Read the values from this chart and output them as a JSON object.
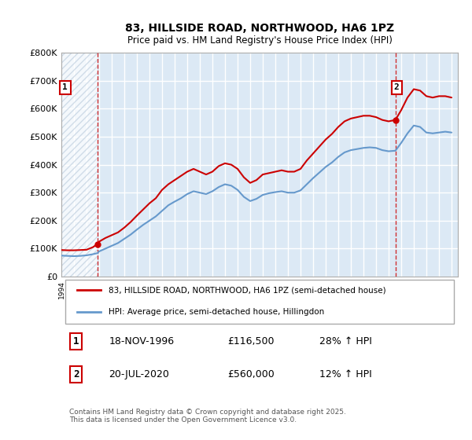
{
  "title": "83, HILLSIDE ROAD, NORTHWOOD, HA6 1PZ",
  "subtitle": "Price paid vs. HM Land Registry's House Price Index (HPI)",
  "background_color": "#ffffff",
  "plot_bg_color": "#dce9f5",
  "hatch_color": "#c0d0e0",
  "grid_color": "#ffffff",
  "ylim": [
    0,
    800000
  ],
  "yticks": [
    0,
    100000,
    200000,
    300000,
    400000,
    500000,
    600000,
    700000,
    800000
  ],
  "ytick_labels": [
    "£0",
    "£100K",
    "£200K",
    "£300K",
    "£400K",
    "£500K",
    "£600K",
    "£700K",
    "£800K"
  ],
  "xlim_start": 1994.0,
  "xlim_end": 2025.5,
  "hatch_end_year": 1996.88,
  "annotation1": {
    "number": "1",
    "year": 1996.88,
    "value": 116500,
    "date": "18-NOV-1996",
    "price": "£116,500",
    "hpi_change": "28% ↑ HPI"
  },
  "annotation2": {
    "number": "2",
    "year": 2020.54,
    "value": 560000,
    "date": "20-JUL-2020",
    "price": "£560,000",
    "hpi_change": "12% ↑ HPI"
  },
  "red_line_color": "#cc0000",
  "blue_line_color": "#6699cc",
  "legend1_label": "83, HILLSIDE ROAD, NORTHWOOD, HA6 1PZ (semi-detached house)",
  "legend2_label": "HPI: Average price, semi-detached house, Hillingdon",
  "footer": "Contains HM Land Registry data © Crown copyright and database right 2025.\nThis data is licensed under the Open Government Licence v3.0.",
  "red_data": {
    "years": [
      1994.0,
      1994.5,
      1995.0,
      1995.5,
      1996.0,
      1996.5,
      1996.88,
      1997.0,
      1997.5,
      1998.0,
      1998.5,
      1999.0,
      1999.5,
      2000.0,
      2000.5,
      2001.0,
      2001.5,
      2002.0,
      2002.5,
      2003.0,
      2003.5,
      2004.0,
      2004.5,
      2005.0,
      2005.5,
      2006.0,
      2006.5,
      2007.0,
      2007.5,
      2008.0,
      2008.5,
      2009.0,
      2009.5,
      2010.0,
      2010.5,
      2011.0,
      2011.5,
      2012.0,
      2012.5,
      2013.0,
      2013.5,
      2014.0,
      2014.5,
      2015.0,
      2015.5,
      2016.0,
      2016.5,
      2017.0,
      2017.5,
      2018.0,
      2018.5,
      2019.0,
      2019.5,
      2020.0,
      2020.54,
      2021.0,
      2021.5,
      2022.0,
      2022.5,
      2023.0,
      2023.5,
      2024.0,
      2024.5,
      2025.0
    ],
    "values": [
      95000,
      94000,
      94000,
      95000,
      96000,
      105000,
      116500,
      125000,
      138000,
      148000,
      158000,
      175000,
      195000,
      218000,
      240000,
      262000,
      280000,
      310000,
      330000,
      345000,
      360000,
      375000,
      385000,
      375000,
      365000,
      375000,
      395000,
      405000,
      400000,
      385000,
      355000,
      335000,
      345000,
      365000,
      370000,
      375000,
      380000,
      375000,
      375000,
      385000,
      415000,
      440000,
      465000,
      490000,
      510000,
      535000,
      555000,
      565000,
      570000,
      575000,
      575000,
      570000,
      560000,
      555000,
      560000,
      595000,
      640000,
      670000,
      665000,
      645000,
      640000,
      645000,
      645000,
      640000
    ]
  },
  "blue_data": {
    "years": [
      1994.0,
      1994.5,
      1995.0,
      1995.5,
      1996.0,
      1996.5,
      1996.88,
      1997.0,
      1997.5,
      1998.0,
      1998.5,
      1999.0,
      1999.5,
      2000.0,
      2000.5,
      2001.0,
      2001.5,
      2002.0,
      2002.5,
      2003.0,
      2003.5,
      2004.0,
      2004.5,
      2005.0,
      2005.5,
      2006.0,
      2006.5,
      2007.0,
      2007.5,
      2008.0,
      2008.5,
      2009.0,
      2009.5,
      2010.0,
      2010.5,
      2011.0,
      2011.5,
      2012.0,
      2012.5,
      2013.0,
      2013.5,
      2014.0,
      2014.5,
      2015.0,
      2015.5,
      2016.0,
      2016.5,
      2017.0,
      2017.5,
      2018.0,
      2018.5,
      2019.0,
      2019.5,
      2020.0,
      2020.54,
      2021.0,
      2021.5,
      2022.0,
      2022.5,
      2023.0,
      2023.5,
      2024.0,
      2024.5,
      2025.0
    ],
    "values": [
      75000,
      74000,
      73000,
      74000,
      76000,
      80000,
      84000,
      90000,
      100000,
      110000,
      120000,
      135000,
      150000,
      168000,
      185000,
      200000,
      215000,
      235000,
      255000,
      268000,
      280000,
      295000,
      305000,
      300000,
      295000,
      305000,
      320000,
      330000,
      325000,
      310000,
      285000,
      270000,
      278000,
      292000,
      298000,
      302000,
      305000,
      300000,
      300000,
      308000,
      330000,
      352000,
      372000,
      392000,
      408000,
      428000,
      444000,
      452000,
      456000,
      460000,
      462000,
      460000,
      452000,
      448000,
      450000,
      478000,
      512000,
      540000,
      535000,
      515000,
      512000,
      515000,
      518000,
      515000
    ]
  }
}
